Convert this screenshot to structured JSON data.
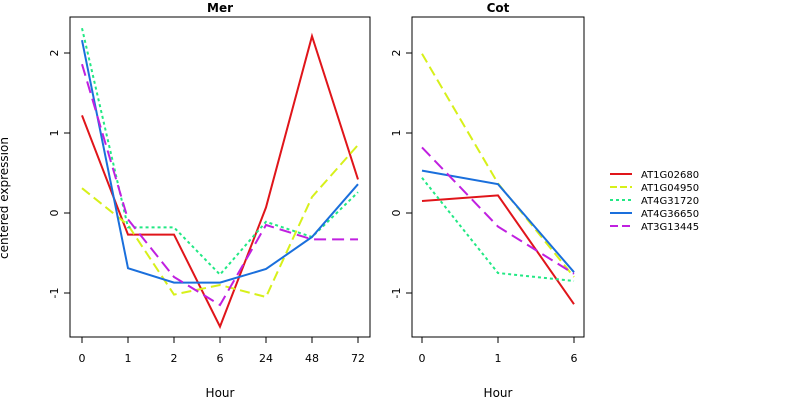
{
  "chart_data": [
    {
      "type": "line",
      "title": "Mer",
      "xlabel": "Hour",
      "ylabel": "centered expression",
      "categories": [
        "0",
        "1",
        "2",
        "6",
        "24",
        "48",
        "72"
      ],
      "ylim": [
        -1.55,
        2.45
      ],
      "yticks": [
        -1,
        0,
        1,
        2
      ],
      "grid": false,
      "series": [
        {
          "name": "AT1G02680",
          "values": [
            1.22,
            -0.27,
            -0.27,
            -1.42,
            0.07,
            2.21,
            0.42
          ]
        },
        {
          "name": "AT1G04950",
          "values": [
            0.31,
            -0.15,
            -1.02,
            -0.9,
            -1.05,
            0.2,
            0.85
          ]
        },
        {
          "name": "AT4G31720",
          "values": [
            2.31,
            -0.18,
            -0.18,
            -0.77,
            -0.11,
            -0.3,
            0.26
          ]
        },
        {
          "name": "AT4G36650",
          "values": [
            2.16,
            -0.69,
            -0.87,
            -0.87,
            -0.7,
            -0.3,
            0.36
          ]
        },
        {
          "name": "AT3G13445",
          "values": [
            1.86,
            -0.08,
            -0.8,
            -1.15,
            -0.15,
            -0.33,
            -0.33
          ]
        }
      ]
    },
    {
      "type": "line",
      "title": "Cot",
      "xlabel": "Hour",
      "categories": [
        "0",
        "1",
        "6"
      ],
      "ylim": [
        -1.55,
        2.45
      ],
      "yticks": [
        -1,
        0,
        1,
        2
      ],
      "grid": false,
      "series": [
        {
          "name": "AT1G02680",
          "values": [
            0.15,
            0.22,
            -1.14
          ]
        },
        {
          "name": "AT1G04950",
          "values": [
            1.99,
            0.37,
            -0.8
          ]
        },
        {
          "name": "AT4G31720",
          "values": [
            0.44,
            -0.75,
            -0.85
          ]
        },
        {
          "name": "AT4G36650",
          "values": [
            0.53,
            0.36,
            -0.74
          ]
        },
        {
          "name": "AT3G13445",
          "values": [
            0.82,
            -0.17,
            -0.76
          ]
        }
      ]
    }
  ],
  "legend": {
    "placement": "right",
    "entries": [
      "AT1G02680",
      "AT1G04950",
      "AT4G31720",
      "AT4G36650",
      "AT3G13445"
    ]
  },
  "series_styles": [
    {
      "color": "#e0151a",
      "dash": ""
    },
    {
      "color": "#d7f01a",
      "dash": "10,5"
    },
    {
      "color": "#22e884",
      "dash": "3,3"
    },
    {
      "color": "#1a6fdc",
      "dash": ""
    },
    {
      "color": "#c020e0",
      "dash": "12,6"
    }
  ]
}
